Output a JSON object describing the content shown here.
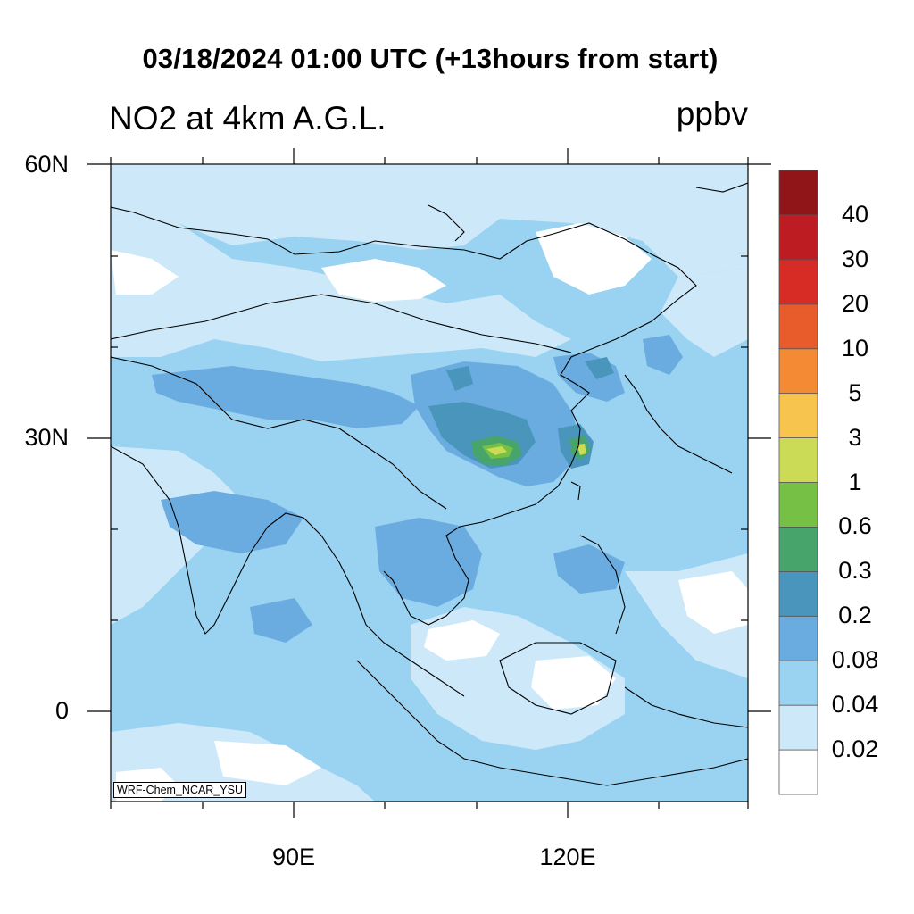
{
  "titles": {
    "main": "03/18/2024 01:00 UTC (+13hours from start)",
    "left": "NO2 at 4km A.G.L.",
    "right": "ppbv"
  },
  "axes": {
    "lat_labels": [
      "60N",
      "30N",
      "0"
    ],
    "lon_labels": [
      "90E",
      "120E"
    ]
  },
  "colorbar": {
    "colors": [
      "#ffffff",
      "#cde9f9",
      "#99d3f1",
      "#6aace0",
      "#4a95bb",
      "#47a56c",
      "#76c046",
      "#ccdb55",
      "#f7c44e",
      "#f48a33",
      "#e85b2b",
      "#d72b26",
      "#bd1d22",
      "#8f1519"
    ],
    "labels": [
      "0.02",
      "0.04",
      "0.08",
      "0.2",
      "0.3",
      "0.6",
      "1",
      "3",
      "5",
      "10",
      "20",
      "30",
      "40"
    ]
  },
  "credit": "WRF-Chem_NCAR_YSU"
}
